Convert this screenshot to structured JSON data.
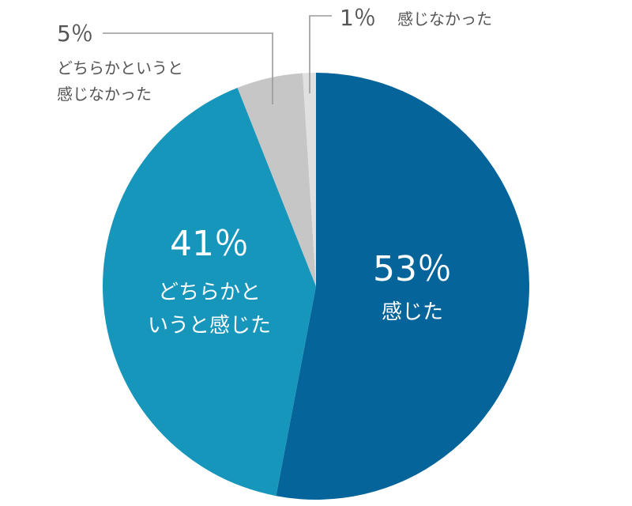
{
  "chart_data": {
    "type": "pie",
    "slices": [
      {
        "pct": 53,
        "value_label": "53％",
        "category": "感じた",
        "color": "#056499"
      },
      {
        "pct": 41,
        "value_label": "41％",
        "category_lines": [
          "どちらかと",
          "いうと感じた"
        ],
        "color": "#1796bc"
      },
      {
        "pct": 5,
        "value_label": "5％",
        "category_lines": [
          "どちらかというと",
          "感じなかった"
        ],
        "color": "#c6c6c6"
      },
      {
        "pct": 1,
        "value_label": "1％",
        "category": "感じなかった",
        "color": "#e0e0e0"
      }
    ]
  }
}
